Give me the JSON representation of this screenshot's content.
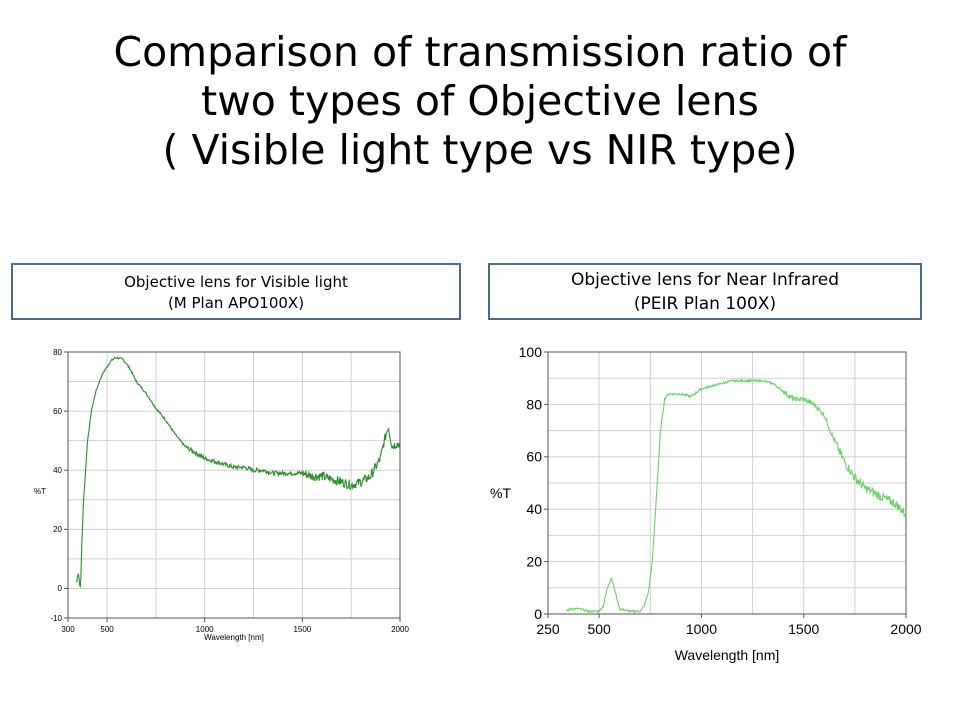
{
  "slide": {
    "title_lines": [
      "Comparison of transmission ratio of",
      "two types of Objective lens",
      "( Visible light type vs NIR type)"
    ]
  },
  "captions": {
    "left": {
      "line1": "Objective lens for Visible light",
      "line2": "(M Plan APO100X)"
    },
    "right": {
      "line1": "Objective lens for Near Infrared",
      "line2": "(PEIR Plan 100X)"
    }
  },
  "colors": {
    "visible_curve": "#2e8b2e",
    "nir_curve": "#6fcf6f",
    "grid": "#d0d0d0",
    "caption_border": "#4a6a8a"
  },
  "chart_data": [
    {
      "type": "line",
      "xlabel": "Wavelength [nm]",
      "ylabel": "%T",
      "xlim": [
        300,
        2000
      ],
      "ylim": [
        -10,
        80
      ],
      "xticks": [
        300,
        500,
        1000,
        1500,
        2000
      ],
      "yticks": [
        -10,
        0,
        20,
        40,
        60,
        80
      ],
      "grid": true,
      "series": [
        {
          "x": [
            345,
            350,
            355,
            360,
            365,
            370,
            380,
            400,
            420,
            440,
            460,
            480,
            500,
            520,
            540,
            560,
            580,
            600,
            620,
            650,
            700,
            750,
            800,
            850,
            900,
            950,
            1000,
            1050,
            1100,
            1150,
            1200,
            1250,
            1300,
            1350,
            1400,
            1450,
            1500,
            1550,
            1600,
            1650,
            1700,
            1750,
            1800,
            1850,
            1900,
            1920,
            1940,
            1960,
            1980,
            2000
          ],
          "y": [
            2,
            5,
            5,
            1,
            1,
            14,
            30,
            50,
            60,
            66,
            70,
            73,
            75,
            77,
            78,
            78,
            77.5,
            76,
            74,
            70,
            66,
            61,
            57,
            52,
            48,
            46,
            44,
            43,
            42,
            41,
            41,
            40,
            40,
            39,
            39,
            39,
            39,
            38,
            38,
            37,
            36,
            35,
            36,
            38,
            44,
            50,
            55,
            48,
            49,
            49
          ]
        }
      ]
    },
    {
      "type": "line",
      "xlabel": "Wavelength [nm]",
      "ylabel": "%T",
      "xlim": [
        250,
        2000
      ],
      "ylim": [
        0,
        100
      ],
      "xticks": [
        250,
        500,
        1000,
        1500,
        2000
      ],
      "yticks": [
        0,
        20,
        40,
        60,
        80,
        100
      ],
      "grid": true,
      "series": [
        {
          "x": [
            340,
            360,
            400,
            450,
            500,
            520,
            540,
            560,
            580,
            600,
            650,
            700,
            720,
            740,
            760,
            780,
            800,
            820,
            840,
            860,
            900,
            950,
            1000,
            1050,
            1100,
            1150,
            1200,
            1250,
            1300,
            1350,
            1400,
            1450,
            1500,
            1550,
            1600,
            1650,
            1700,
            1750,
            1800,
            1850,
            1900,
            1950,
            2000
          ],
          "y": [
            1,
            2,
            2,
            1,
            1,
            3,
            10,
            14,
            8,
            2,
            1,
            1,
            3,
            8,
            20,
            45,
            70,
            82,
            84,
            84,
            84,
            83,
            86,
            87,
            88,
            89,
            89,
            89,
            89,
            88,
            85,
            82,
            82,
            80,
            76,
            66,
            58,
            52,
            48,
            46,
            44,
            42,
            38
          ]
        }
      ]
    }
  ]
}
